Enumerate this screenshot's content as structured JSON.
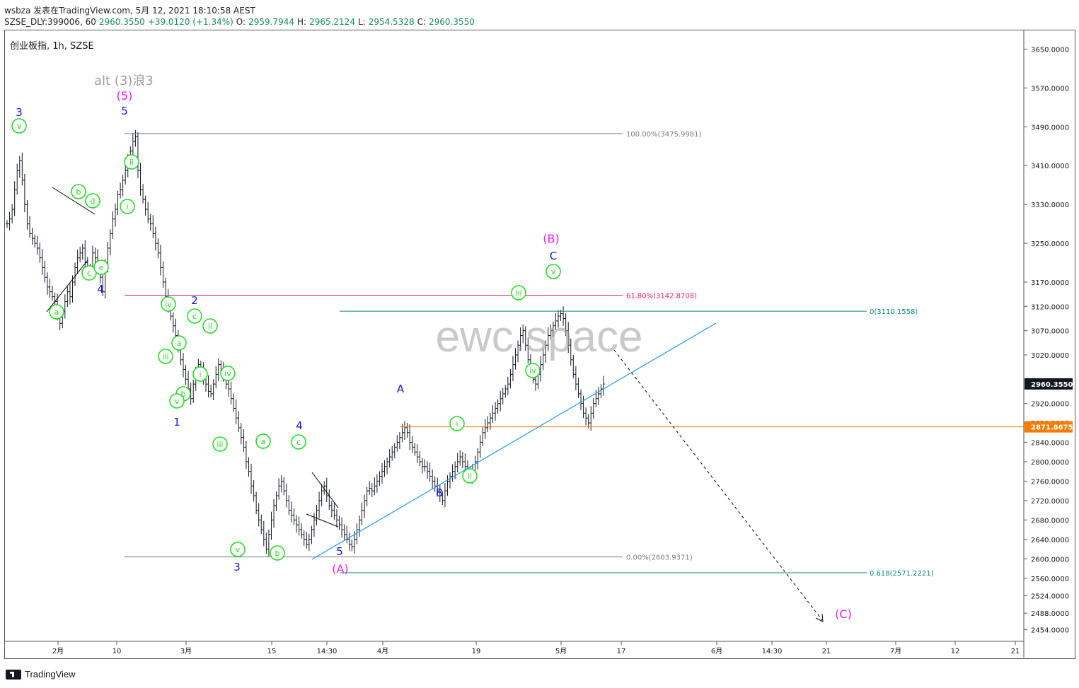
{
  "header": {
    "line1": "wsbza 发表在TradingView.com, 5月 12, 2021 18:10:58 AEST",
    "symbol": "SZSE_DLY:399006, 60",
    "last": "2960.3550",
    "change": "+39.0120 (+1.34%)",
    "o_label": "O:",
    "o": "2959.7944",
    "h_label": "H:",
    "h": "2965.2124",
    "l_label": "L:",
    "l": "2954.5328",
    "c_label": "C:",
    "c": "2960.3550"
  },
  "legend": "创业板指, 1h, SZSE",
  "watermark": "ewc.space",
  "footer": {
    "brand": "TradingView"
  },
  "colors": {
    "candle": "#131722",
    "fib_grey": "#787b86",
    "fib_pink": "#e91e63",
    "teal": "#00897b",
    "trend": "#2196f3",
    "orange": "#f57c00",
    "green": "#1ed91e",
    "blue": "#1414d2",
    "magenta": "#e91ef0"
  },
  "chart_data": {
    "type": "candlestick",
    "y_axis": {
      "range": [
        2430,
        3690
      ],
      "ticks": [
        "3650.0000",
        "3570.0000",
        "3490.0000",
        "3410.0000",
        "3330.0000",
        "3250.0000",
        "3170.0000",
        "3120.0000",
        "3070.0000",
        "3020.0000",
        "2920.0000",
        "2880.0000",
        "2840.0000",
        "2800.0000",
        "2760.0000",
        "2720.0000",
        "2680.0000",
        "2640.0000",
        "2600.0000",
        "2560.0000",
        "2524.0000",
        "2488.0000",
        "2454.0000"
      ],
      "tick_values": [
        3650,
        3570,
        3490,
        3410,
        3330,
        3250,
        3170,
        3120,
        3070,
        3020,
        2920,
        2880,
        2840,
        2800,
        2760,
        2720,
        2680,
        2640,
        2600,
        2560,
        2524,
        2488,
        2454
      ]
    },
    "x_axis": {
      "ticks": [
        "2月",
        "10",
        "3月",
        "15",
        "14:30",
        "4月",
        "19",
        "5月",
        "17",
        "6月",
        "14:30",
        "21",
        "7月",
        "12",
        "21"
      ]
    },
    "price_labels": [
      {
        "text": "2960.3550",
        "value": 2960.355,
        "style": "dark"
      },
      {
        "text": "2871.8675",
        "value": 2871.8675,
        "style": "orange"
      }
    ],
    "fib_labels": [
      {
        "text": "100.00%(3475.9981)",
        "value": 3475.9981
      },
      {
        "text": "61.80%(3142.8708)",
        "value": 3142.8708
      },
      {
        "text": "0.00%(2603.9371)",
        "value": 2603.9371
      },
      {
        "text": "0(3110.1558)",
        "value": 3110.1558
      },
      {
        "text": "0.618(2571.2221)",
        "value": 2571.2221
      }
    ],
    "wave_labels": {
      "alt": "alt (3)浪3",
      "blue": [
        "3",
        "5",
        "4",
        "2",
        "1",
        "3",
        "4",
        "5",
        "A",
        "B",
        "C"
      ],
      "magenta": [
        "(5)",
        "(A)",
        "(B)",
        "(C)"
      ],
      "green": [
        "v",
        "ii",
        "i",
        "b",
        "d",
        "c",
        "e",
        "a",
        "iv",
        "c",
        "ii",
        "a",
        "iii",
        "i",
        "b",
        "v",
        "iv",
        "iii",
        "v",
        "a",
        "c",
        "b",
        "i",
        "ii",
        "iii",
        "iv",
        "v"
      ]
    },
    "hourly_closes": [
      3290,
      3300,
      3320,
      3360,
      3400,
      3420,
      3380,
      3330,
      3290,
      3270,
      3260,
      3250,
      3240,
      3220,
      3200,
      3180,
      3160,
      3150,
      3140,
      3130,
      3100,
      3085,
      3110,
      3130,
      3150,
      3140,
      3170,
      3200,
      3220,
      3230,
      3240,
      3210,
      3190,
      3200,
      3230,
      3220,
      3200,
      3180,
      3150,
      3200,
      3240,
      3270,
      3300,
      3320,
      3350,
      3360,
      3380,
      3400,
      3420,
      3440,
      3460,
      3470,
      3400,
      3360,
      3340,
      3320,
      3300,
      3290,
      3270,
      3250,
      3230,
      3200,
      3170,
      3140,
      3120,
      3100,
      3080,
      3060,
      3040,
      3010,
      2990,
      2970,
      2950,
      2930,
      2960,
      2980,
      3000,
      2990,
      2970,
      2960,
      2945,
      2940,
      2960,
      2980,
      3000,
      2990,
      2980,
      2960,
      2950,
      2930,
      2910,
      2890,
      2870,
      2850,
      2830,
      2800,
      2780,
      2750,
      2730,
      2700,
      2680,
      2660,
      2640,
      2620,
      2650,
      2680,
      2710,
      2730,
      2750,
      2760,
      2740,
      2720,
      2700,
      2690,
      2680,
      2670,
      2660,
      2650,
      2640,
      2630,
      2640,
      2660,
      2680,
      2700,
      2720,
      2740,
      2750,
      2730,
      2710,
      2700,
      2690,
      2680,
      2670,
      2660,
      2650,
      2640,
      2630,
      2625,
      2640,
      2660,
      2680,
      2700,
      2720,
      2740,
      2745,
      2740,
      2750,
      2760,
      2770,
      2780,
      2790,
      2800,
      2810,
      2820,
      2830,
      2840,
      2850,
      2860,
      2870,
      2860,
      2840,
      2830,
      2820,
      2810,
      2800,
      2790,
      2790,
      2780,
      2770,
      2760,
      2750,
      2740,
      2730,
      2720,
      2740,
      2760,
      2770,
      2780,
      2790,
      2800,
      2810,
      2800,
      2790,
      2780,
      2770,
      2780,
      2800,
      2820,
      2840,
      2860,
      2870,
      2880,
      2890,
      2900,
      2910,
      2920,
      2930,
      2940,
      2950,
      2960,
      2980,
      3000,
      3020,
      3040,
      3060,
      3070,
      3040,
      3010,
      2990,
      2970,
      2960,
      2980,
      3000,
      3020,
      3040,
      3060,
      3070,
      3080,
      3090,
      3100,
      3105,
      3095,
      3070,
      3040,
      3010,
      2980,
      2960,
      2940,
      2920,
      2900,
      2890,
      2880,
      2900,
      2920,
      2930,
      2940,
      2950,
      2960
    ]
  }
}
